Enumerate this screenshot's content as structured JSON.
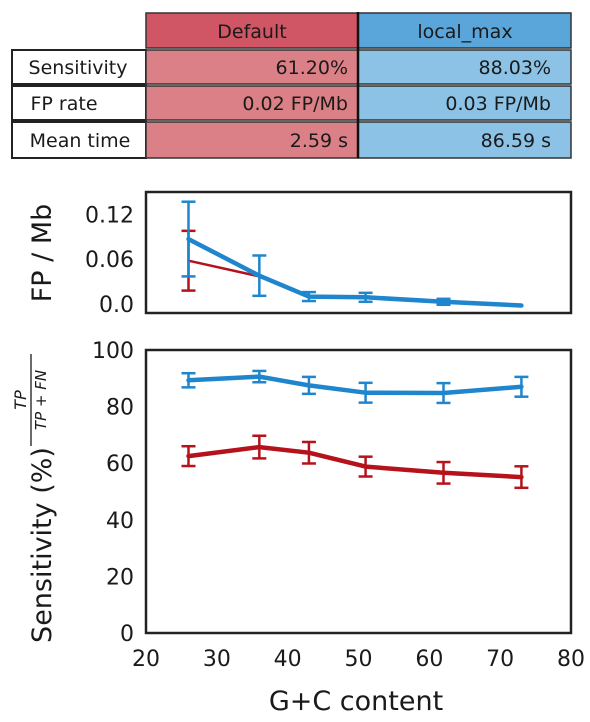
{
  "table": {
    "columns": [
      "Default",
      "local_max"
    ],
    "rows": [
      {
        "label": "Sensitivity",
        "values": [
          "61.20%",
          "88.03%"
        ]
      },
      {
        "label": "FP rate",
        "values": [
          "0.02 FP/Mb",
          "0.03 FP/Mb"
        ]
      },
      {
        "label": "Mean time",
        "values": [
          "2.59 s",
          "86.59 s"
        ]
      }
    ],
    "colors": {
      "default_header": "#d05565",
      "default_cell": "#db8086",
      "local_header": "#5aa5da",
      "local_cell": "#8bc2e6"
    }
  },
  "colors": {
    "default": "#b5121b",
    "local_max": "#1f86cd"
  },
  "chart_data": [
    {
      "type": "line",
      "ylabel": "FP / Mb",
      "xlim": [
        20,
        80
      ],
      "ylim": [
        -0.012,
        0.15
      ],
      "yticks": [
        "0.0",
        "0.06",
        "0.12"
      ],
      "ytick_values": [
        0.0,
        0.06,
        0.12
      ],
      "series": [
        {
          "key": "default",
          "x": [
            26,
            36
          ],
          "y": [
            0.058,
            0.037
          ],
          "err": [
            0.04,
            0.0
          ]
        },
        {
          "key": "local_max",
          "x": [
            26,
            36,
            43,
            51,
            62,
            73
          ],
          "y": [
            0.087,
            0.038,
            0.01,
            0.009,
            0.003,
            -0.002
          ],
          "err": [
            0.05,
            0.027,
            0.006,
            0.006,
            0.004,
            0.0
          ]
        }
      ]
    },
    {
      "type": "line",
      "ylabel": "Sensitivity (%)",
      "ylabel_fraction": {
        "num": "TP",
        "den": "TP + FN"
      },
      "xlabel": "G+C content",
      "xlim": [
        20,
        80
      ],
      "ylim": [
        0,
        100
      ],
      "xticks": [
        "20",
        "30",
        "40",
        "50",
        "60",
        "70",
        "80"
      ],
      "xtick_values": [
        20,
        30,
        40,
        50,
        60,
        70,
        80
      ],
      "yticks": [
        "0",
        "20",
        "40",
        "60",
        "80",
        "100"
      ],
      "ytick_values": [
        0,
        20,
        40,
        60,
        80,
        100
      ],
      "series": [
        {
          "key": "default",
          "x": [
            26,
            36,
            43,
            51,
            62,
            73
          ],
          "y": [
            62.5,
            65.7,
            63.7,
            58.8,
            56.6,
            55.1
          ],
          "err": [
            3.5,
            4.0,
            3.8,
            3.5,
            3.8,
            3.8
          ]
        },
        {
          "key": "local_max",
          "x": [
            26,
            36,
            43,
            51,
            62,
            73
          ],
          "y": [
            89.3,
            90.6,
            87.5,
            84.9,
            84.8,
            87.0
          ],
          "err": [
            2.5,
            2.0,
            3.0,
            3.5,
            3.5,
            3.5
          ]
        }
      ]
    }
  ]
}
